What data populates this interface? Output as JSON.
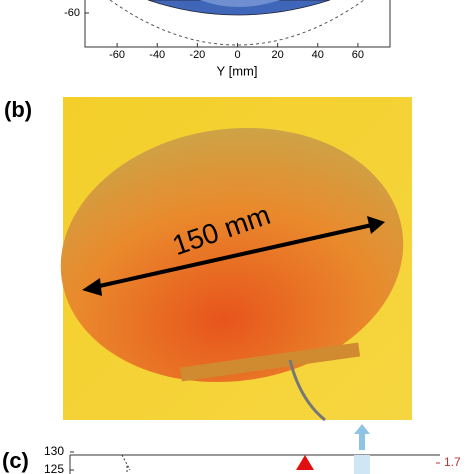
{
  "panel_a": {
    "x_label": "Y [mm]",
    "xlim": [
      -76,
      76
    ],
    "xticks": [
      -60,
      -40,
      -20,
      0,
      20,
      40,
      60
    ],
    "yticks": [
      -60
    ]
  },
  "panel_b": {
    "label": "(b)",
    "annotation": "150 mm"
  },
  "panel_c": {
    "label": "(c)",
    "left_ticks": [
      130,
      125
    ],
    "right_ticks": [
      1.7
    ]
  }
}
